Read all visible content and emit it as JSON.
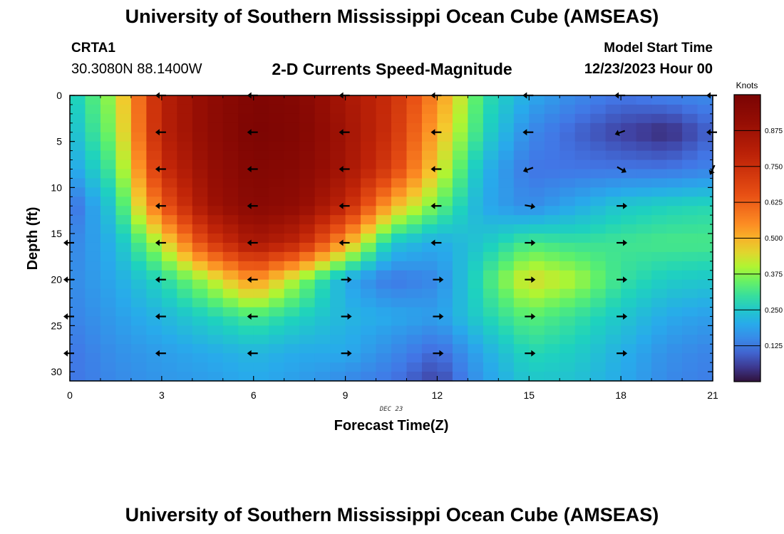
{
  "header": {
    "title": "University of Southern Mississippi Ocean Cube (AMSEAS)",
    "station_id": "CRTA1",
    "coordinates": "30.3080N  88.1400W",
    "plot_title": "2-D Currents Speed-Magnitude",
    "model_start_label": "Model Start Time",
    "model_start_value": "12/23/2023 Hour 00"
  },
  "footer": {
    "title": "University of Southern Mississippi Ocean Cube (AMSEAS)"
  },
  "chart_data": {
    "type": "heatmap",
    "title": "2-D Currents Speed-Magnitude",
    "xlabel": "Forecast Time(Z)",
    "ylabel": "Depth (ft)",
    "xlim": [
      0,
      21
    ],
    "ylim": [
      31,
      0
    ],
    "x_ticks": [
      "0",
      "3",
      "6",
      "9",
      "12",
      "15",
      "18",
      "21"
    ],
    "y_ticks": [
      "0",
      "5",
      "10",
      "15",
      "20",
      "25",
      "30"
    ],
    "x_tick_values": [
      0,
      3,
      6,
      9,
      12,
      15,
      18,
      21
    ],
    "y_tick_values": [
      0,
      5,
      10,
      15,
      20,
      25,
      30
    ],
    "date_label": "DEC 23",
    "colorbar": {
      "title": "Knots",
      "range": [
        0,
        1.0
      ],
      "ticks": [
        "0.125",
        "0.250",
        "0.375",
        "0.500",
        "0.625",
        "0.750",
        "0.875"
      ],
      "tick_values": [
        0.125,
        0.25,
        0.375,
        0.5,
        0.625,
        0.75,
        0.875
      ]
    },
    "times": [
      0,
      1.5,
      3,
      4.5,
      6,
      7.5,
      9,
      10.5,
      12,
      13.5,
      15,
      16.5,
      18,
      19.5,
      21
    ],
    "depths": [
      0,
      4,
      8,
      12,
      16,
      20,
      24,
      28,
      31
    ],
    "speed_knots": [
      [
        0.25,
        0.4,
        0.8,
        0.92,
        0.98,
        0.96,
        0.85,
        0.75,
        0.55,
        0.3,
        0.2,
        0.15,
        0.12,
        0.14,
        0.15
      ],
      [
        0.22,
        0.38,
        0.8,
        0.92,
        0.99,
        0.97,
        0.87,
        0.74,
        0.5,
        0.28,
        0.15,
        0.1,
        0.06,
        0.03,
        0.1
      ],
      [
        0.18,
        0.33,
        0.75,
        0.9,
        0.97,
        0.95,
        0.86,
        0.7,
        0.45,
        0.22,
        0.12,
        0.12,
        0.12,
        0.12,
        0.14
      ],
      [
        0.1,
        0.27,
        0.63,
        0.87,
        0.95,
        0.92,
        0.78,
        0.5,
        0.35,
        0.2,
        0.15,
        0.2,
        0.25,
        0.27,
        0.28
      ],
      [
        0.14,
        0.22,
        0.42,
        0.7,
        0.85,
        0.78,
        0.52,
        0.25,
        0.2,
        0.25,
        0.32,
        0.3,
        0.31,
        0.32,
        0.32
      ],
      [
        0.15,
        0.2,
        0.28,
        0.4,
        0.55,
        0.38,
        0.2,
        0.12,
        0.15,
        0.3,
        0.45,
        0.4,
        0.3,
        0.26,
        0.25
      ],
      [
        0.14,
        0.18,
        0.22,
        0.27,
        0.32,
        0.27,
        0.22,
        0.2,
        0.18,
        0.27,
        0.34,
        0.3,
        0.25,
        0.2,
        0.18
      ],
      [
        0.12,
        0.16,
        0.18,
        0.2,
        0.22,
        0.2,
        0.2,
        0.15,
        0.1,
        0.2,
        0.28,
        0.26,
        0.21,
        0.16,
        0.14
      ],
      [
        0.12,
        0.15,
        0.17,
        0.18,
        0.2,
        0.18,
        0.15,
        0.12,
        0.06,
        0.18,
        0.25,
        0.24,
        0.2,
        0.15,
        0.13
      ]
    ],
    "vector_times": [
      0,
      3,
      6,
      9,
      12,
      15,
      18,
      21
    ],
    "vector_depths": [
      0,
      4,
      8,
      12,
      16,
      20,
      24,
      28
    ],
    "vector_directions_deg": [
      [
        null,
        180,
        180,
        180,
        180,
        180,
        180,
        180
      ],
      [
        null,
        180,
        180,
        180,
        180,
        180,
        200,
        180
      ],
      [
        null,
        180,
        180,
        180,
        180,
        200,
        330,
        245
      ],
      [
        null,
        180,
        180,
        180,
        180,
        350,
        0,
        null
      ],
      [
        180,
        180,
        180,
        180,
        180,
        0,
        0,
        null
      ],
      [
        180,
        180,
        180,
        0,
        0,
        0,
        0,
        null
      ],
      [
        180,
        180,
        180,
        0,
        0,
        0,
        0,
        null
      ],
      [
        180,
        180,
        180,
        0,
        0,
        0,
        0,
        null
      ]
    ]
  }
}
